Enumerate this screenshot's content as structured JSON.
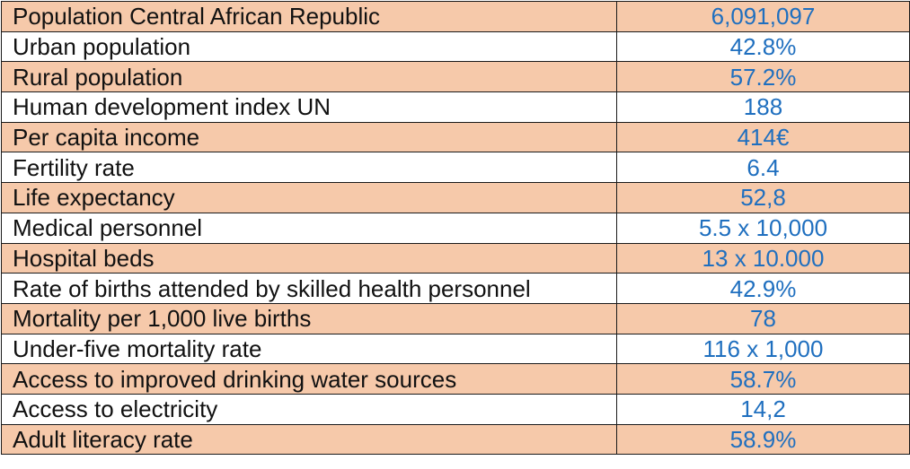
{
  "table": {
    "rows": [
      {
        "label": "Population Central African Republic",
        "value": "6,091,097"
      },
      {
        "label": "Urban population",
        "value": "42.8%"
      },
      {
        "label": "Rural population",
        "value": "57.2%"
      },
      {
        "label": "Human development index UN",
        "value": "188"
      },
      {
        "label": "Per capita income",
        "value": "414€"
      },
      {
        "label": "Fertility rate",
        "value": "6.4"
      },
      {
        "label": "Life expectancy",
        "value": "52,8"
      },
      {
        "label": "Medical personnel",
        "value": "5.5 x 10,000"
      },
      {
        "label": "Hospital beds",
        "value": "13 x 10.000"
      },
      {
        "label": "Rate of births attended by skilled health personnel",
        "value": "42.9%"
      },
      {
        "label": "Mortality per 1,000 live births",
        "value": "78"
      },
      {
        "label": "Under-five mortality rate",
        "value": "116 x 1,000"
      },
      {
        "label": "Access to improved drinking water sources",
        "value": "58.7%"
      },
      {
        "label": "Access to electricity",
        "value": "14,2"
      },
      {
        "label": "Adult literacy rate",
        "value": "58.9%"
      }
    ]
  },
  "colors": {
    "shaded_row": "#f6c9aa",
    "plain_row": "#ffffff",
    "label_text": "#111111",
    "value_text": "#1f6fbf",
    "border": "#1a1a1a"
  }
}
